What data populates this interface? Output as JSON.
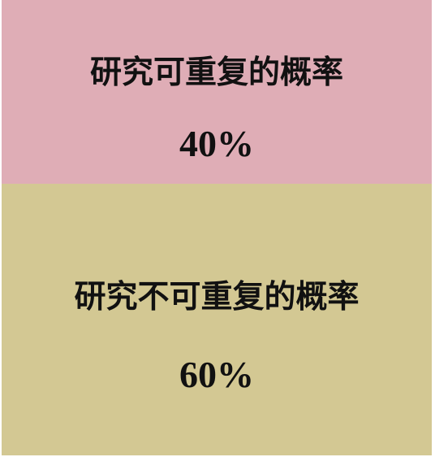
{
  "boxes": [
    {
      "label": "研究可重复的概率",
      "value": "40%",
      "share": 0.4,
      "color": "#dfadb6"
    },
    {
      "label": "研究不可重复的概率",
      "value": "60%",
      "share": 0.6,
      "color": "#d3c893"
    }
  ]
}
